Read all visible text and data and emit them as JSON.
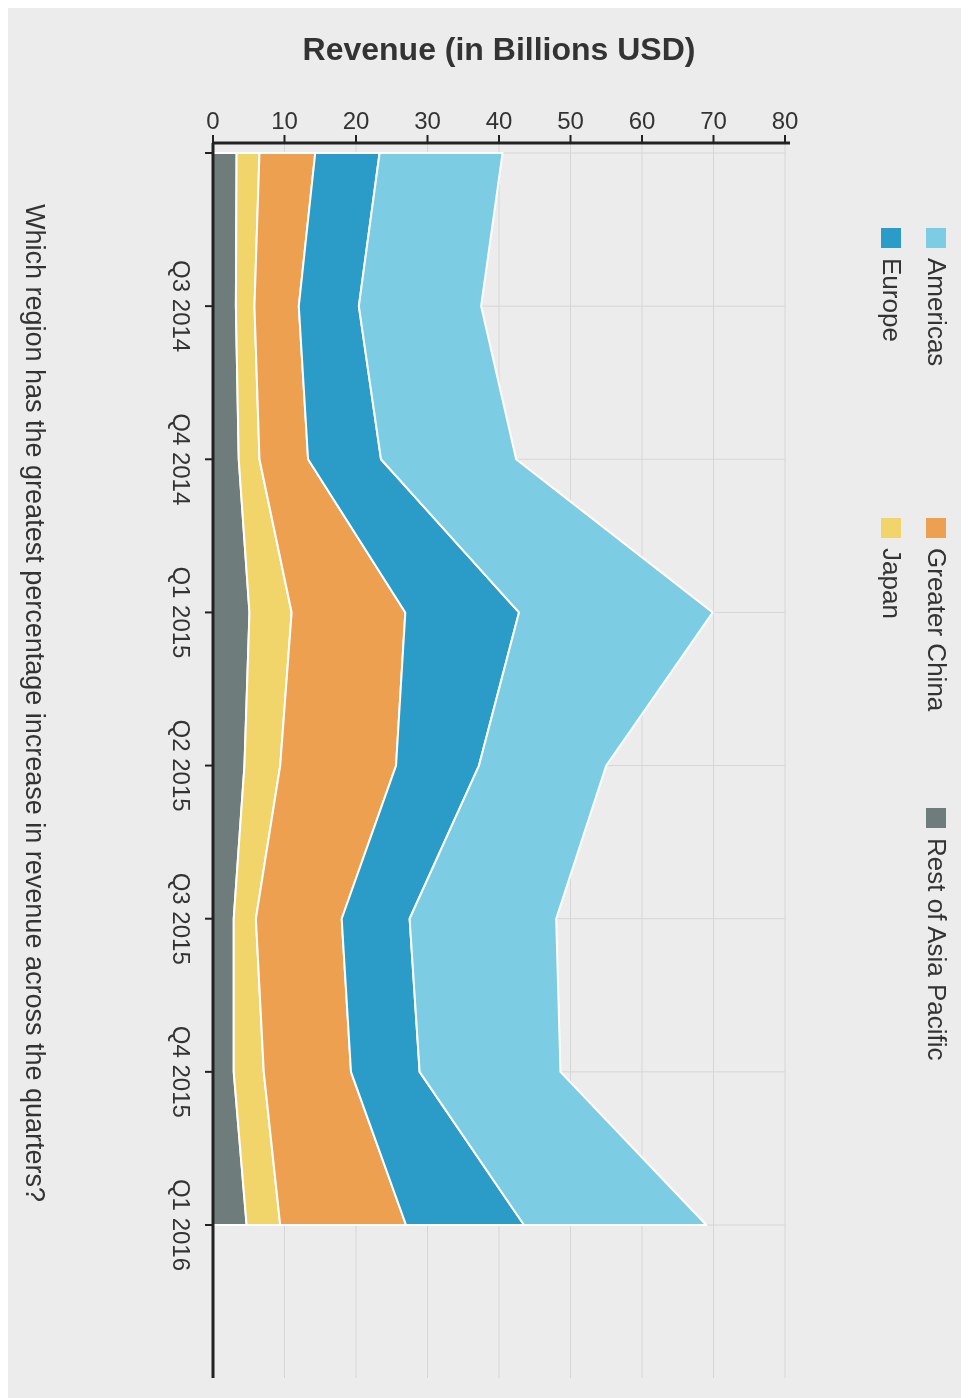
{
  "chart_data": {
    "type": "area",
    "stacked": true,
    "orientation": "horizontal",
    "xlabel": "Revenue (in Billions USD)",
    "categories": [
      null,
      "Q3 2014",
      "Q4 2014",
      "Q1 2015",
      "Q2 2015",
      "Q3 2015",
      "Q4 2015",
      "Q1 2016"
    ],
    "series": [
      {
        "name": "Rest of Asia Pacific",
        "color": "#6e7c7b",
        "values": [
          3.3,
          3.2,
          3.6,
          5.1,
          4.4,
          2.9,
          2.9,
          4.7
        ]
      },
      {
        "name": "Japan",
        "color": "#f1d56b",
        "values": [
          3.2,
          2.6,
          2.9,
          5.9,
          5.0,
          3.1,
          4.2,
          4.7
        ]
      },
      {
        "name": "Greater China",
        "color": "#eda04f",
        "values": [
          7.8,
          6.2,
          6.8,
          15.9,
          16.2,
          12.0,
          12.2,
          17.6
        ]
      },
      {
        "name": "Europe",
        "color": "#2a9cc7",
        "values": [
          9.0,
          8.4,
          10.2,
          15.9,
          11.6,
          9.5,
          9.6,
          16.5
        ]
      },
      {
        "name": "Americas",
        "color": "#7ccde3",
        "values": [
          17.2,
          17.1,
          18.9,
          27.1,
          17.8,
          20.5,
          19.7,
          25.5
        ]
      }
    ],
    "xlim": [
      0,
      80
    ],
    "xticks": [
      0,
      10,
      20,
      30,
      40,
      50,
      60,
      70,
      80
    ],
    "grid": true,
    "legend": "top",
    "annotations": [
      "Which region has the greatest percentage increase in revenue across the quarters?"
    ]
  }
}
